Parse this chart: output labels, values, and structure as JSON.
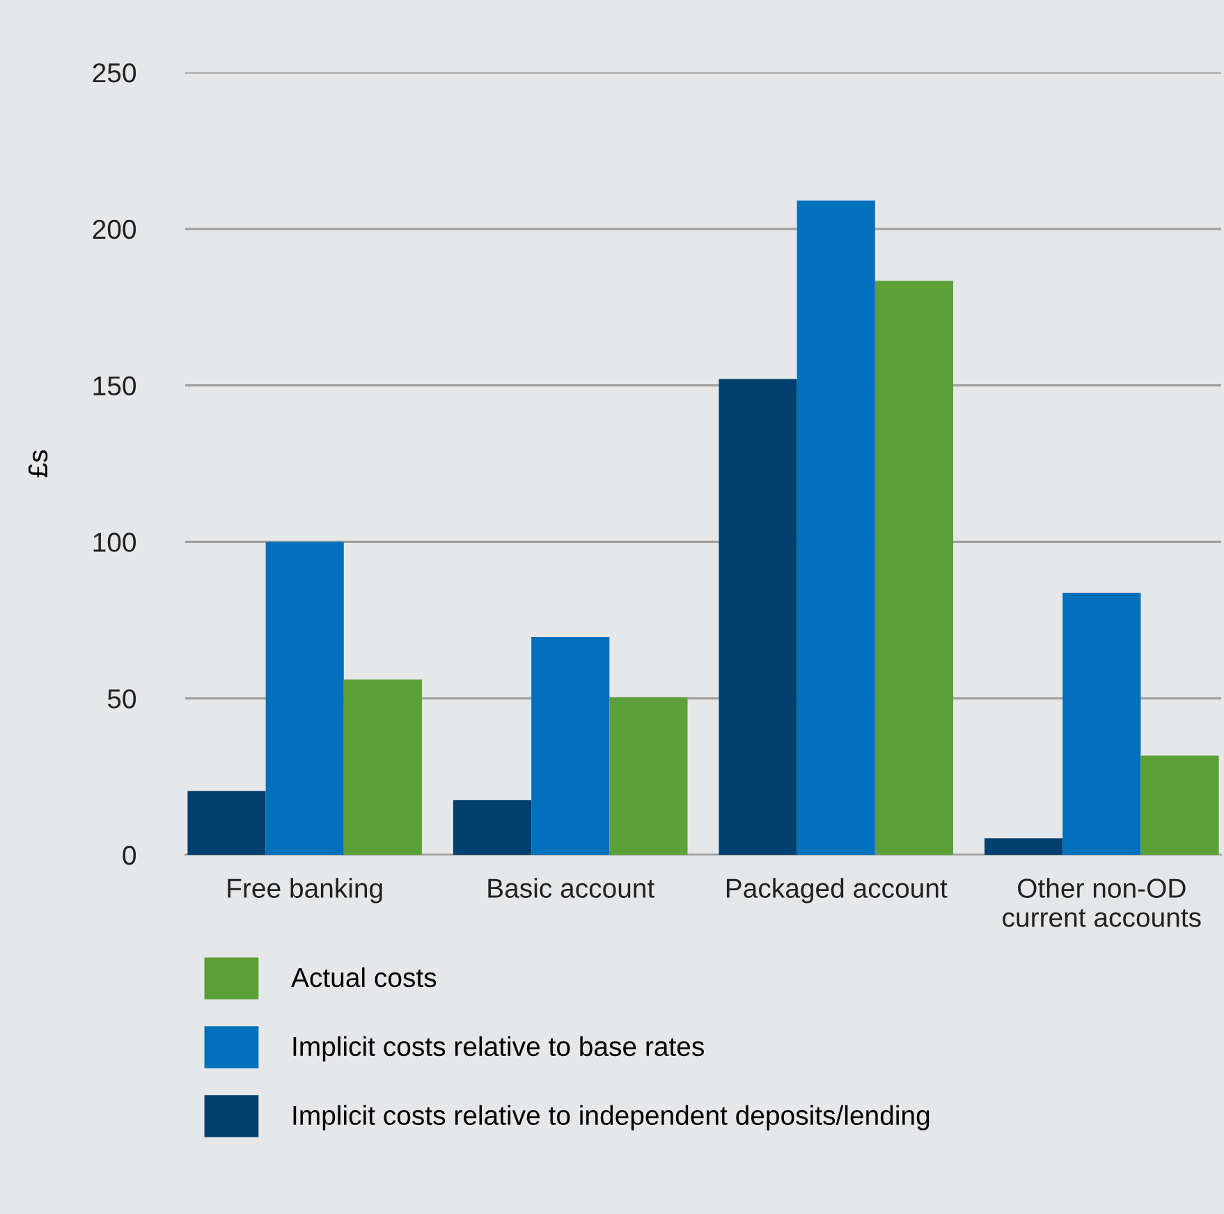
{
  "chart_data": {
    "type": "bar",
    "ylabel": "£s",
    "categories": [
      "Free banking",
      "Basic account",
      "Packaged account",
      "Other non-OD\ncurrent accounts"
    ],
    "series": [
      {
        "name": "Implicit costs relative to independent deposits/lending",
        "color": "#003f6e",
        "values": [
          20.4,
          17.5,
          152,
          5.3
        ]
      },
      {
        "name": "Implicit costs relative to base rates",
        "color": "#0070bc",
        "values": [
          100,
          69.6,
          209,
          83.7
        ]
      },
      {
        "name": "Actual costs",
        "color": "#5ca038",
        "values": [
          56,
          50.3,
          183.4,
          31.7
        ]
      }
    ],
    "ylim": [
      0,
      250
    ],
    "yticks": [
      0,
      50,
      100,
      150,
      200,
      250
    ],
    "grid": "y",
    "legend": "bottom"
  }
}
